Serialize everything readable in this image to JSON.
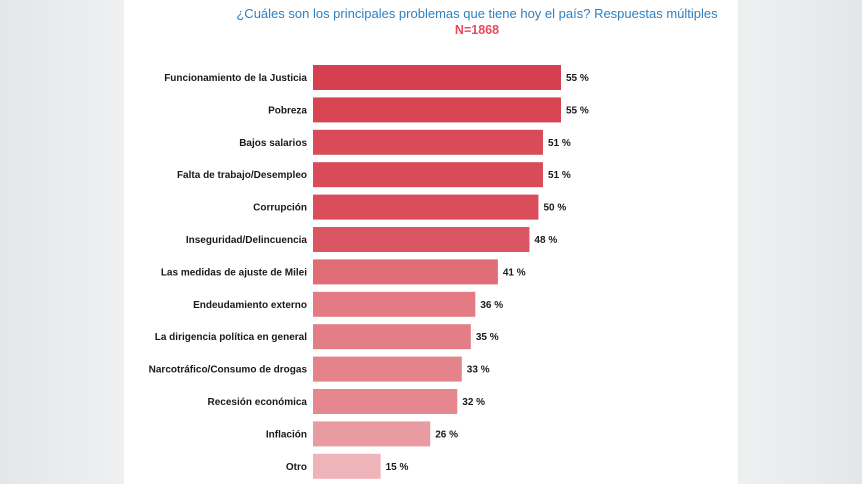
{
  "chart_data": {
    "type": "bar",
    "orientation": "horizontal",
    "title": "¿Cuáles son los principales problemas que tiene hoy el país? Respuestas múltiples",
    "subtitle": "N=1868",
    "categories": [
      "Funcionamiento de la Justicia",
      "Pobreza",
      "Bajos salarios",
      "Falta de trabajo/Desempleo",
      "Corrupción",
      "Inseguridad/Delincuencia",
      "Las medidas de ajuste de Milei",
      "Endeudamiento externo",
      "La dirigencia política en general",
      "Narcotráfico/Consumo de drogas",
      "Recesión económica",
      "Inflación",
      "Otro"
    ],
    "values": [
      55,
      55,
      51,
      51,
      50,
      48,
      41,
      36,
      35,
      33,
      32,
      26,
      15
    ],
    "value_labels": [
      "55 %",
      "55 %",
      "51 %",
      "51 %",
      "50 %",
      "48 %",
      "41 %",
      "36 %",
      "35 %",
      "33 %",
      "32 %",
      "26 %",
      "15 %"
    ],
    "bar_colors": [
      "#d63f4f",
      "#d84552",
      "#d94b58",
      "#d94b58",
      "#da4d5a",
      "#db5562",
      "#e06c76",
      "#e47b84",
      "#e47e86",
      "#e5838b",
      "#e6868e",
      "#e99ba2",
      "#efb4b9"
    ],
    "xlim": [
      0,
      55
    ],
    "grid": false,
    "legend": "none"
  }
}
